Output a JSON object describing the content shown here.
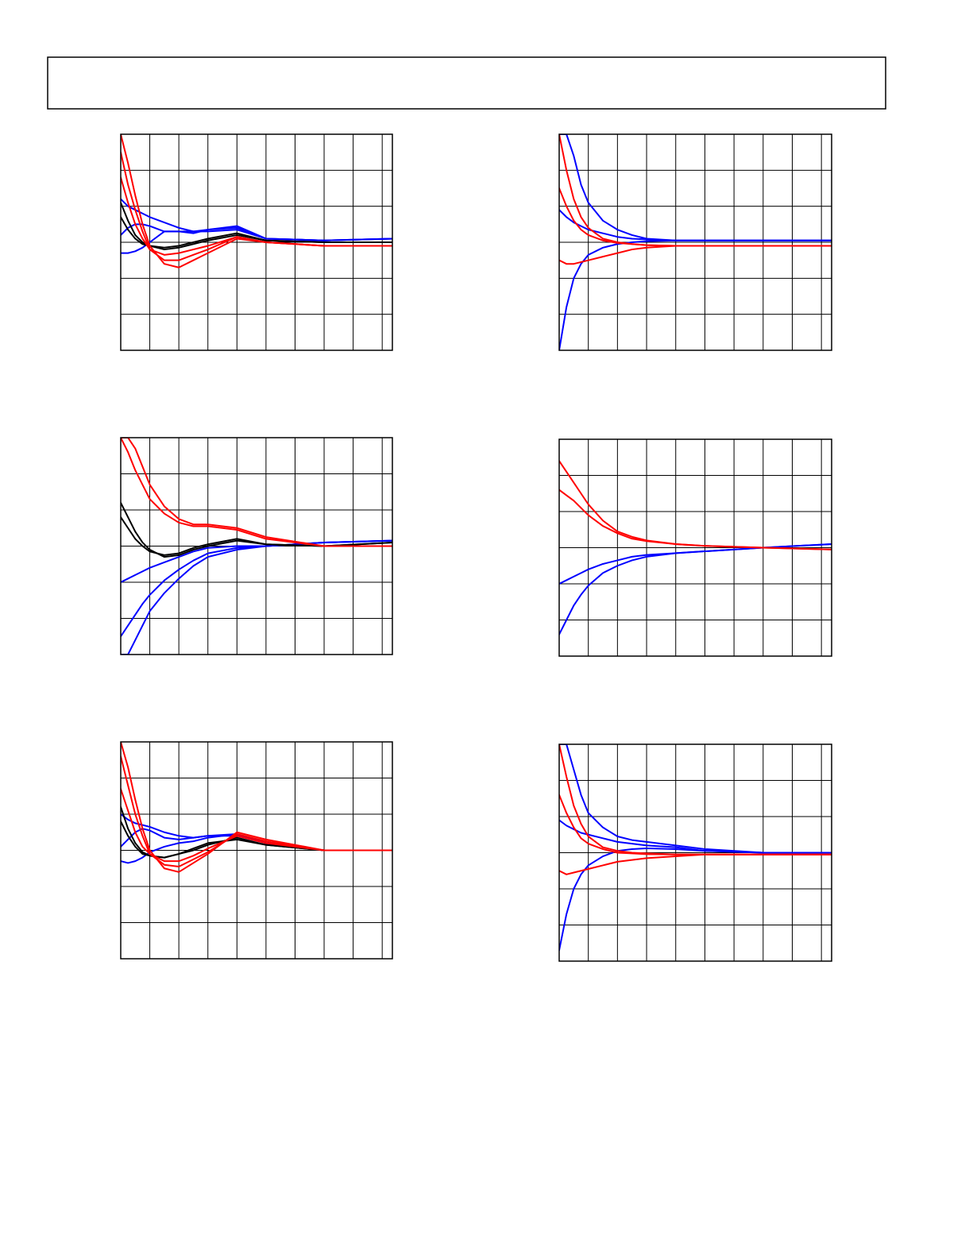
{
  "chart_data": [
    {
      "type": "line",
      "x": [
        0,
        0.25,
        0.5,
        0.75,
        1,
        1.5,
        2,
        2.5,
        3,
        4,
        5,
        7,
        9.35
      ],
      "xlim": [
        0,
        9.35
      ],
      "ylim": [
        -3,
        3
      ],
      "xticks": [
        0,
        1,
        2,
        3,
        4,
        5,
        6,
        7,
        8,
        9
      ],
      "yticks": [
        -3,
        -2,
        -1,
        0,
        1,
        2,
        3
      ],
      "grid": true,
      "series": [
        {
          "color": "#0000ff",
          "values": [
            0.2,
            0.4,
            0.5,
            0.5,
            0.45,
            0.3,
            0.3,
            0.25,
            0.35,
            0.45,
            0.1,
            0.05,
            0.1
          ]
        },
        {
          "color": "#0000ff",
          "values": [
            -0.3,
            -0.3,
            -0.25,
            -0.15,
            0,
            0.3,
            0.3,
            0.3,
            0.35,
            0.4,
            0.1,
            0.05,
            0.1
          ]
        },
        {
          "color": "#0000ff",
          "values": [
            1.2,
            1,
            0.9,
            0.8,
            0.7,
            0.55,
            0.4,
            0.3,
            0.3,
            0.35,
            0.1,
            0.05,
            0.1
          ]
        },
        {
          "color": "#000000",
          "values": [
            1.1,
            0.6,
            0.2,
            0,
            -0.1,
            -0.2,
            -0.15,
            -0.05,
            0.05,
            0.2,
            0.05,
            0,
            0
          ]
        },
        {
          "color": "#000000",
          "values": [
            0.7,
            0.35,
            0.1,
            -0.05,
            -0.1,
            -0.15,
            -0.1,
            0,
            0.1,
            0.25,
            0.05,
            0,
            0
          ]
        },
        {
          "color": "#ff0000",
          "values": [
            3,
            2.2,
            1.3,
            0.5,
            -0.1,
            -0.6,
            -0.7,
            -0.5,
            -0.3,
            0.1,
            0,
            -0.1,
            -0.1
          ]
        },
        {
          "color": "#ff0000",
          "values": [
            2.5,
            1.6,
            0.9,
            0.3,
            -0.2,
            -0.5,
            -0.5,
            -0.35,
            -0.2,
            0.15,
            0,
            -0.1,
            -0.1
          ]
        },
        {
          "color": "#ff0000",
          "values": [
            1.8,
            1.1,
            0.5,
            0.1,
            -0.2,
            -0.35,
            -0.3,
            -0.2,
            -0.1,
            0.15,
            0,
            -0.1,
            -0.1
          ]
        }
      ]
    },
    {
      "type": "line",
      "x": [
        0,
        0.25,
        0.5,
        0.75,
        1,
        1.5,
        2,
        2.5,
        3,
        4,
        5,
        7,
        9.35
      ],
      "xlim": [
        0,
        9.35
      ],
      "ylim": [
        -3,
        3
      ],
      "xticks": [
        0,
        1,
        2,
        3,
        4,
        5,
        6,
        7,
        8,
        9
      ],
      "yticks": [
        -3,
        -2,
        -1,
        0,
        1,
        2,
        3
      ],
      "grid": true,
      "series": [
        {
          "color": "#0000ff",
          "values": [
            3,
            3,
            2.4,
            1.6,
            1.1,
            0.6,
            0.35,
            0.2,
            0.1,
            0.05,
            0.05,
            0.05,
            0.05
          ]
        },
        {
          "color": "#0000ff",
          "values": [
            -3,
            -1.8,
            -1,
            -0.6,
            -0.35,
            -0.15,
            -0.05,
            0,
            0.03,
            0.05,
            0.05,
            0.05,
            0.05
          ]
        },
        {
          "color": "#0000ff",
          "values": [
            0.9,
            0.7,
            0.55,
            0.45,
            0.35,
            0.25,
            0.15,
            0.1,
            0.08,
            0.05,
            0.05,
            0.05,
            0.05
          ]
        },
        {
          "color": "#ff0000",
          "values": [
            3,
            2,
            1.2,
            0.7,
            0.4,
            0.1,
            0,
            -0.05,
            -0.08,
            -0.1,
            -0.1,
            -0.1,
            -0.1
          ]
        },
        {
          "color": "#ff0000",
          "values": [
            1.5,
            1,
            0.6,
            0.35,
            0.2,
            0.05,
            -0.02,
            -0.05,
            -0.08,
            -0.1,
            -0.1,
            -0.1,
            -0.1
          ]
        },
        {
          "color": "#ff0000",
          "values": [
            -0.5,
            -0.6,
            -0.6,
            -0.55,
            -0.5,
            -0.4,
            -0.3,
            -0.2,
            -0.15,
            -0.1,
            -0.1,
            -0.1,
            -0.1
          ]
        }
      ]
    },
    {
      "type": "line",
      "x": [
        0,
        0.25,
        0.5,
        0.75,
        1,
        1.5,
        2,
        2.5,
        3,
        4,
        5,
        7,
        9.35
      ],
      "xlim": [
        0,
        9.35
      ],
      "ylim": [
        -3,
        3
      ],
      "xticks": [
        0,
        1,
        2,
        3,
        4,
        5,
        6,
        7,
        8,
        9
      ],
      "yticks": [
        -3,
        -2,
        -1,
        0,
        1,
        2,
        3
      ],
      "grid": true,
      "series": [
        {
          "color": "#0000ff",
          "values": [
            -1,
            -0.9,
            -0.8,
            -0.7,
            -0.6,
            -0.45,
            -0.3,
            -0.15,
            -0.05,
            0,
            0,
            0.1,
            0.15
          ]
        },
        {
          "color": "#0000ff",
          "values": [
            -2.5,
            -2.2,
            -1.9,
            -1.6,
            -1.35,
            -0.95,
            -0.65,
            -0.4,
            -0.2,
            -0.05,
            0,
            0.1,
            0.15
          ]
        },
        {
          "color": "#0000ff",
          "values": [
            -3,
            -3,
            -2.6,
            -2.2,
            -1.8,
            -1.3,
            -0.9,
            -0.55,
            -0.3,
            -0.1,
            0,
            0.1,
            0.15
          ]
        },
        {
          "color": "#000000",
          "values": [
            1.2,
            0.8,
            0.4,
            0.1,
            -0.1,
            -0.3,
            -0.25,
            -0.1,
            0,
            0.15,
            0.05,
            0,
            0.1
          ]
        },
        {
          "color": "#000000",
          "values": [
            0.8,
            0.5,
            0.2,
            0,
            -0.15,
            -0.25,
            -0.2,
            -0.05,
            0.05,
            0.2,
            0.05,
            0,
            0.1
          ]
        },
        {
          "color": "#ff0000",
          "values": [
            3,
            3,
            2.7,
            2.2,
            1.7,
            1.1,
            0.75,
            0.6,
            0.6,
            0.5,
            0.25,
            0,
            0
          ]
        },
        {
          "color": "#ff0000",
          "values": [
            3,
            2.6,
            2.1,
            1.7,
            1.3,
            0.9,
            0.65,
            0.55,
            0.55,
            0.45,
            0.2,
            0,
            0
          ]
        }
      ]
    },
    {
      "type": "line",
      "x": [
        0,
        0.25,
        0.5,
        0.75,
        1,
        1.5,
        2,
        2.5,
        3,
        4,
        5,
        7,
        9.35
      ],
      "xlim": [
        0,
        9.35
      ],
      "ylim": [
        -3,
        3
      ],
      "xticks": [
        0,
        1,
        2,
        3,
        4,
        5,
        6,
        7,
        8,
        9
      ],
      "yticks": [
        -3,
        -2,
        -1,
        0,
        1,
        2,
        3
      ],
      "grid": true,
      "series": [
        {
          "color": "#0000ff",
          "values": [
            -2.4,
            -2,
            -1.6,
            -1.3,
            -1.05,
            -0.7,
            -0.5,
            -0.35,
            -0.25,
            -0.15,
            -0.1,
            0,
            0.1
          ]
        },
        {
          "color": "#0000ff",
          "values": [
            -1,
            -0.9,
            -0.8,
            -0.7,
            -0.6,
            -0.45,
            -0.35,
            -0.25,
            -0.2,
            -0.15,
            -0.1,
            0,
            0.1
          ]
        },
        {
          "color": "#ff0000",
          "values": [
            2.4,
            2.1,
            1.8,
            1.5,
            1.2,
            0.75,
            0.45,
            0.3,
            0.2,
            0.1,
            0.05,
            0,
            -0.05
          ]
        },
        {
          "color": "#ff0000",
          "values": [
            1.6,
            1.45,
            1.3,
            1.1,
            0.9,
            0.6,
            0.4,
            0.25,
            0.18,
            0.1,
            0.05,
            0,
            -0.05
          ]
        }
      ]
    },
    {
      "type": "line",
      "x": [
        0,
        0.25,
        0.5,
        0.75,
        1,
        1.5,
        2,
        2.5,
        3,
        4,
        5,
        7,
        9.35
      ],
      "xlim": [
        0,
        9.35
      ],
      "ylim": [
        -3,
        3
      ],
      "xticks": [
        0,
        1,
        2,
        3,
        4,
        5,
        6,
        7,
        8,
        9
      ],
      "yticks": [
        -3,
        -2,
        -1,
        0,
        1,
        2,
        3
      ],
      "grid": true,
      "series": [
        {
          "color": "#0000ff",
          "values": [
            0.1,
            0.3,
            0.5,
            0.6,
            0.55,
            0.35,
            0.3,
            0.35,
            0.4,
            0.4,
            0.2,
            0,
            0
          ]
        },
        {
          "color": "#0000ff",
          "values": [
            -0.3,
            -0.35,
            -0.3,
            -0.2,
            -0.05,
            0.1,
            0.2,
            0.25,
            0.35,
            0.45,
            0.2,
            0,
            0
          ]
        },
        {
          "color": "#0000ff",
          "values": [
            1,
            0.85,
            0.75,
            0.7,
            0.65,
            0.5,
            0.4,
            0.35,
            0.4,
            0.45,
            0.2,
            0,
            0
          ]
        },
        {
          "color": "#000000",
          "values": [
            1.2,
            0.6,
            0.2,
            -0.05,
            -0.15,
            -0.2,
            -0.1,
            0,
            0.15,
            0.35,
            0.15,
            0,
            0
          ]
        },
        {
          "color": "#000000",
          "values": [
            0.8,
            0.4,
            0.1,
            -0.1,
            -0.15,
            -0.2,
            -0.1,
            0.05,
            0.2,
            0.3,
            0.15,
            0,
            0
          ]
        },
        {
          "color": "#ff0000",
          "values": [
            3,
            2.3,
            1.4,
            0.6,
            0,
            -0.5,
            -0.6,
            -0.35,
            -0.1,
            0.5,
            0.3,
            0,
            0
          ]
        },
        {
          "color": "#ff0000",
          "values": [
            2.6,
            1.8,
            1,
            0.4,
            -0.1,
            -0.4,
            -0.45,
            -0.25,
            -0.05,
            0.45,
            0.25,
            0,
            0
          ]
        },
        {
          "color": "#ff0000",
          "values": [
            1.7,
            1.1,
            0.5,
            0.1,
            -0.1,
            -0.3,
            -0.3,
            -0.15,
            0.05,
            0.4,
            0.2,
            0,
            0
          ]
        }
      ]
    },
    {
      "type": "line",
      "x": [
        0,
        0.25,
        0.5,
        0.75,
        1,
        1.5,
        2,
        2.5,
        3,
        4,
        5,
        7,
        9.35
      ],
      "xlim": [
        0,
        9.35
      ],
      "ylim": [
        -3,
        3
      ],
      "xticks": [
        0,
        1,
        2,
        3,
        4,
        5,
        6,
        7,
        8,
        9
      ],
      "yticks": [
        -3,
        -2,
        -1,
        0,
        1,
        2,
        3
      ],
      "grid": true,
      "series": [
        {
          "color": "#0000ff",
          "values": [
            3,
            3,
            2.3,
            1.6,
            1.1,
            0.7,
            0.45,
            0.35,
            0.3,
            0.2,
            0.1,
            0,
            0
          ]
        },
        {
          "color": "#0000ff",
          "values": [
            -2.7,
            -1.7,
            -1,
            -0.6,
            -0.35,
            -0.1,
            0.05,
            0.1,
            0.12,
            0.1,
            0.05,
            0,
            0
          ]
        },
        {
          "color": "#0000ff",
          "values": [
            0.9,
            0.75,
            0.65,
            0.55,
            0.5,
            0.4,
            0.3,
            0.25,
            0.2,
            0.15,
            0.05,
            0,
            0
          ]
        },
        {
          "color": "#ff0000",
          "values": [
            3,
            2.1,
            1.3,
            0.8,
            0.45,
            0.15,
            0.05,
            0,
            -0.02,
            -0.05,
            -0.05,
            -0.05,
            -0.05
          ]
        },
        {
          "color": "#ff0000",
          "values": [
            1.6,
            1.1,
            0.7,
            0.4,
            0.25,
            0.1,
            0,
            -0.02,
            -0.04,
            -0.05,
            -0.05,
            -0.05,
            -0.05
          ]
        },
        {
          "color": "#ff0000",
          "values": [
            -0.5,
            -0.6,
            -0.55,
            -0.5,
            -0.45,
            -0.35,
            -0.25,
            -0.2,
            -0.15,
            -0.1,
            -0.05,
            -0.05,
            -0.05
          ]
        }
      ]
    }
  ]
}
